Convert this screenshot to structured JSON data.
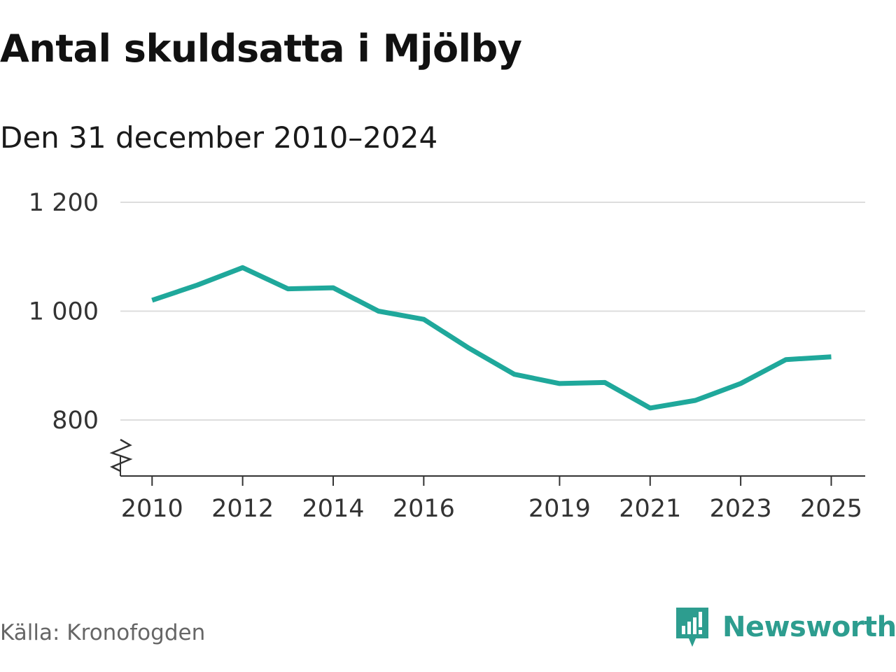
{
  "header": {
    "title": "Antal skuldsatta i Mjölby",
    "subtitle": "Den 31 december 2010–2024"
  },
  "footer": {
    "source": "Källa: Kronofogden",
    "brand": "Newsworthy",
    "brand_icon": "newsworthy-logo-icon",
    "brand_color": "#2d9d8f"
  },
  "chart_data": {
    "type": "line",
    "title": "Antal skuldsatta i Mjölby",
    "subtitle": "Den 31 december 2010–2024",
    "xlabel": "",
    "ylabel": "",
    "x": [
      2010,
      2011,
      2012,
      2013,
      2014,
      2015,
      2016,
      2017,
      2018,
      2019,
      2020,
      2021,
      2022,
      2023,
      2024,
      2025
    ],
    "series": [
      {
        "values": [
          1020,
          1048,
          1080,
          1041,
          1043,
          1000,
          985,
          932,
          884,
          867,
          869,
          822,
          836,
          867,
          911,
          916
        ],
        "color": "#1fa89b"
      }
    ],
    "x_ticks": [
      2010,
      2012,
      2014,
      2016,
      2019,
      2021,
      2023,
      2025
    ],
    "x_tick_labels": [
      "2010",
      "2012",
      "2014",
      "2016",
      "2019",
      "2021",
      "2023",
      "2025"
    ],
    "y_ticks": [
      800,
      1000,
      1200
    ],
    "y_tick_labels": [
      "800",
      "1 000",
      "1 200"
    ],
    "xlim": [
      2009.3,
      2025.75
    ],
    "ylim": [
      700,
      1200
    ],
    "y_axis_break": true,
    "grid": true,
    "legend": "none"
  }
}
